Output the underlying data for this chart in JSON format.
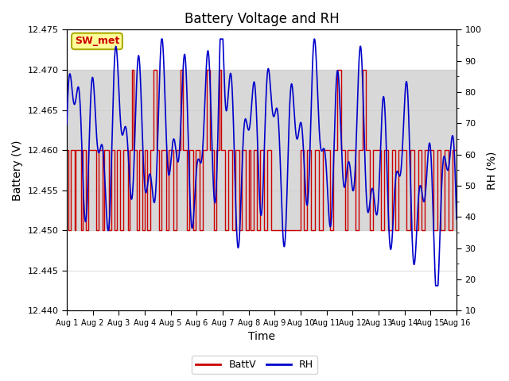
{
  "title": "Battery Voltage and RH",
  "xlabel": "Time",
  "ylabel_left": "Battery (V)",
  "ylabel_right": "RH (%)",
  "legend_label": "SW_met",
  "xlim": [
    0,
    15
  ],
  "ylim_left": [
    12.44,
    12.475
  ],
  "ylim_right": [
    10,
    100
  ],
  "xtick_labels": [
    "Aug 1",
    "Aug 2",
    "Aug 3",
    "Aug 4",
    "Aug 5",
    "Aug 6",
    "Aug 7",
    "Aug 8",
    "Aug 9",
    "Aug 10",
    "Aug 11",
    "Aug 12",
    "Aug 13",
    "Aug 14",
    "Aug 15",
    "Aug 16"
  ],
  "ytick_left": [
    12.44,
    12.445,
    12.45,
    12.455,
    12.46,
    12.465,
    12.47,
    12.475
  ],
  "ytick_right": [
    10,
    20,
    30,
    40,
    50,
    60,
    70,
    80,
    90,
    100
  ],
  "batt_color": "#cc0000",
  "rh_color": "#0000cc",
  "bg_band_color": "#d8d8d8",
  "bg_band_ymin": 12.45,
  "bg_band_ymax": 12.47,
  "title_fontsize": 12,
  "axis_fontsize": 10,
  "tick_fontsize": 8,
  "legend_box_facecolor": "#ffff99",
  "legend_box_edgecolor": "#aaaa00",
  "legend_text_color": "#cc0000",
  "figsize": [
    6.4,
    4.8
  ],
  "dpi": 100
}
